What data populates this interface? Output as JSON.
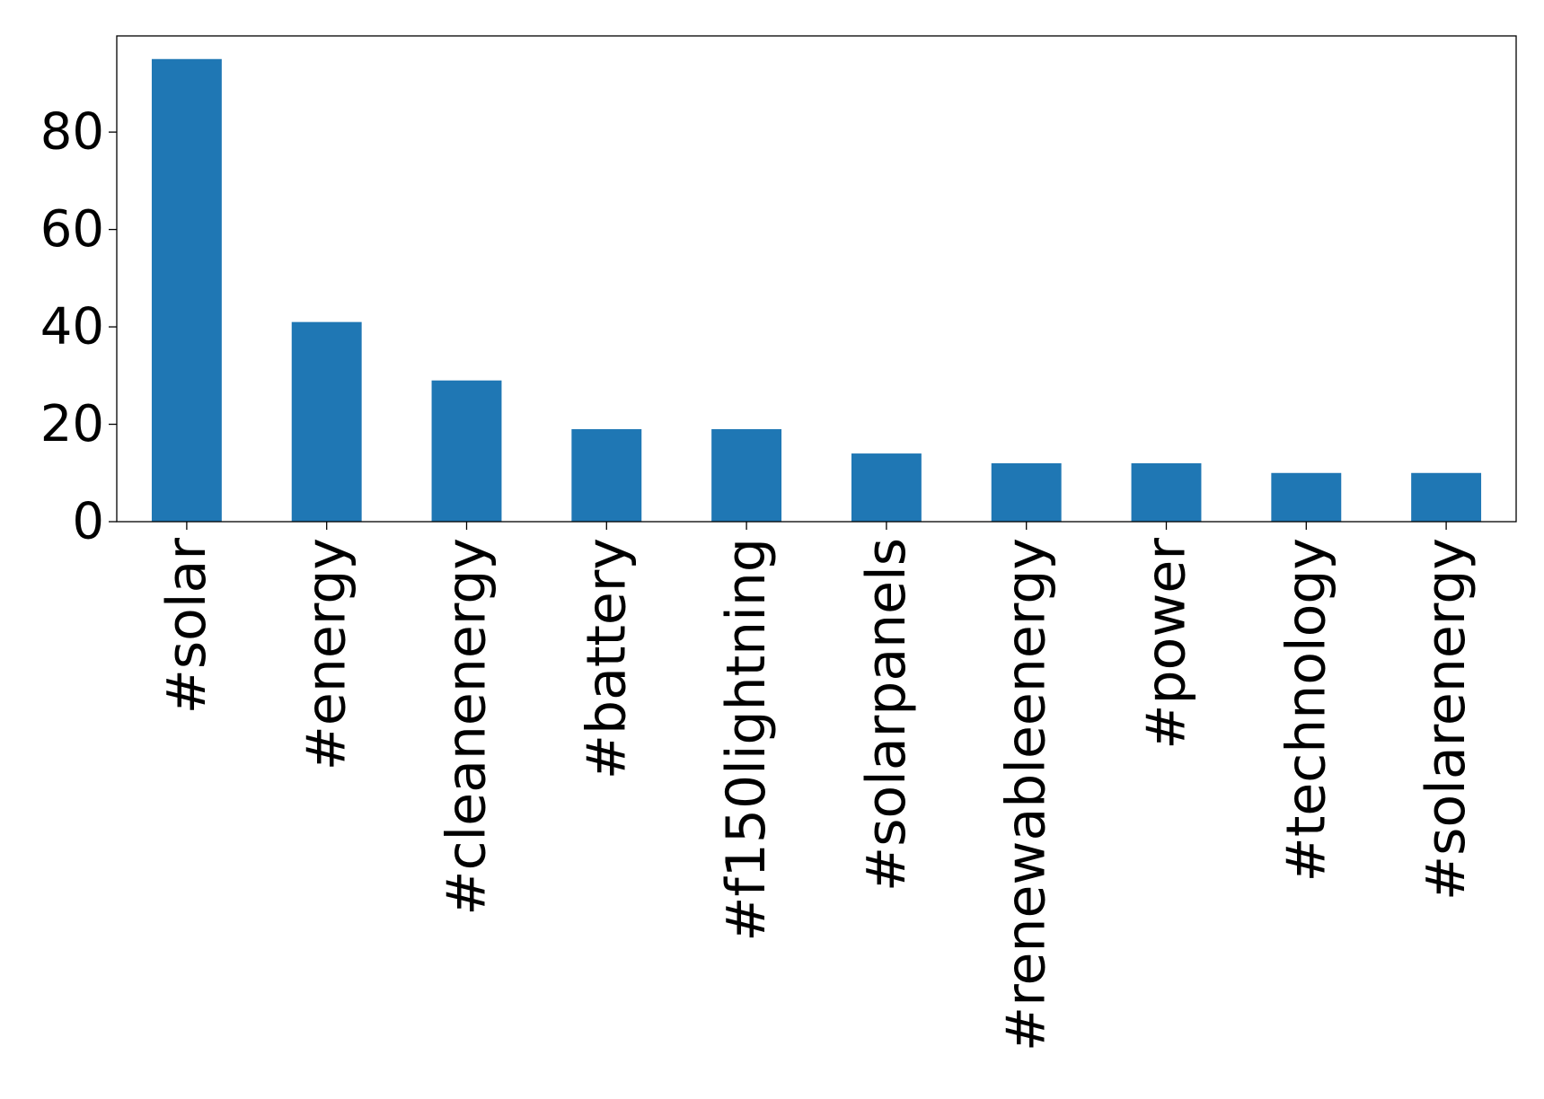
{
  "chart_data": {
    "type": "bar",
    "categories": [
      "#solar",
      "#energy",
      "#cleanenergy",
      "#battery",
      "#f150lightning",
      "#solarpanels",
      "#renewableenergy",
      "#power",
      "#technology",
      "#solarenergy"
    ],
    "values": [
      95,
      41,
      29,
      19,
      19,
      14,
      12,
      12,
      10,
      10
    ],
    "title": "",
    "xlabel": "",
    "ylabel": "",
    "ylim": [
      0,
      99.75
    ],
    "yticks": [
      0,
      20,
      40,
      60,
      80
    ],
    "grid": false,
    "legend": "none",
    "colors": {
      "bar": "#1f77b4",
      "axis": "#000000"
    }
  }
}
